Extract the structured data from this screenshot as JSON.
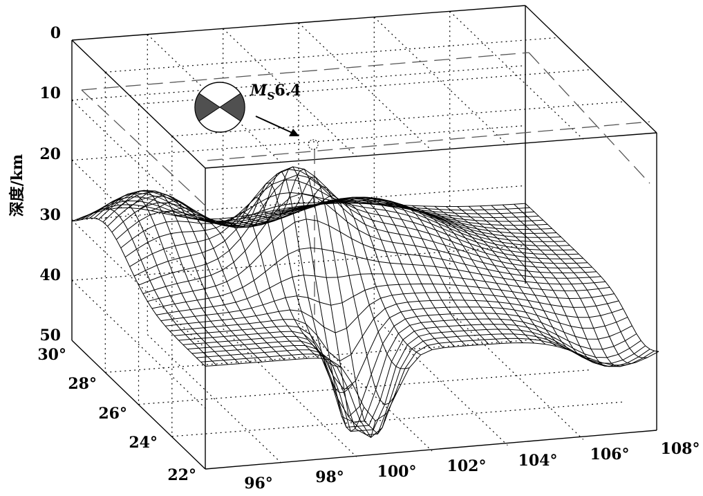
{
  "figure": {
    "axes": {
      "depth": {
        "label": "深度/km",
        "ticks": [
          "0",
          "10",
          "20",
          "30",
          "40",
          "50"
        ]
      },
      "latitude": {
        "ticks": [
          "30°",
          "28°",
          "26°",
          "24°",
          "22°"
        ]
      },
      "longitude": {
        "ticks": [
          "96°",
          "98°",
          "100°",
          "102°",
          "104°",
          "106°",
          "108°"
        ]
      }
    },
    "annotation": {
      "magnitude_symbol": "M",
      "magnitude_subscript": "S",
      "magnitude_value": "6.4"
    },
    "colors": {
      "mesh": "#000000",
      "focal_mechanism_fill": "#505050",
      "dashed_reference": "#555555"
    }
  }
}
